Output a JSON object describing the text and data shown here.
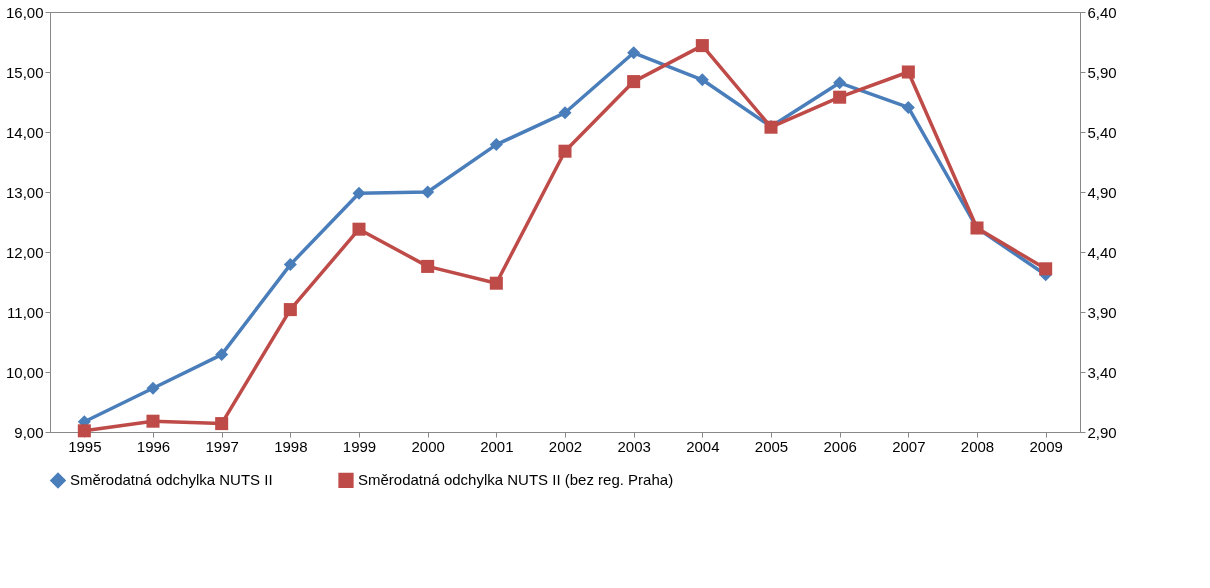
{
  "chart_data": {
    "type": "line",
    "categories": [
      "1995",
      "1996",
      "1997",
      "1998",
      "1999",
      "2000",
      "2001",
      "2002",
      "2003",
      "2004",
      "2005",
      "2006",
      "2007",
      "2008",
      "2009"
    ],
    "series": [
      {
        "name": "Směrodatná odchylka NUTS II",
        "color": "#4a7ebb",
        "marker": "diamond",
        "values": [
          9.17,
          9.73,
          10.29,
          11.79,
          12.98,
          13.0,
          13.79,
          14.32,
          15.32,
          14.87,
          14.09,
          14.82,
          14.41,
          12.4,
          11.62
        ]
      },
      {
        "name": "Směrodatná odchylka NUTS II (bez reg. Praha)",
        "color": "#be4b48",
        "marker": "square",
        "axis": "y2",
        "values": [
          2.91,
          2.99,
          2.97,
          3.92,
          4.59,
          4.28,
          4.14,
          5.24,
          5.82,
          6.12,
          5.44,
          5.69,
          5.9,
          4.6,
          4.26
        ]
      }
    ],
    "ylim": [
      9,
      16
    ],
    "yticks": [
      {
        "value": 9,
        "label": "9,00"
      },
      {
        "value": 10,
        "label": "10,00"
      },
      {
        "value": 11,
        "label": "11,00"
      },
      {
        "value": 12,
        "label": "12,00"
      },
      {
        "value": 13,
        "label": "13,00"
      },
      {
        "value": 14,
        "label": "14,00"
      },
      {
        "value": 15,
        "label": "15,00"
      },
      {
        "value": 16,
        "label": "16,00"
      }
    ],
    "y2lim": [
      2.9,
      6.4
    ],
    "y2ticks": [
      {
        "value": 2.9,
        "label": "2,90"
      },
      {
        "value": 3.4,
        "label": "3,40"
      },
      {
        "value": 3.9,
        "label": "3,90"
      },
      {
        "value": 4.4,
        "label": "4,40"
      },
      {
        "value": 4.9,
        "label": "4,90"
      },
      {
        "value": 5.4,
        "label": "5,40"
      },
      {
        "value": 5.9,
        "label": "5,90"
      },
      {
        "value": 6.4,
        "label": "6,40"
      }
    ],
    "grid": false,
    "legend": "bottom",
    "line_style": "solid"
  }
}
